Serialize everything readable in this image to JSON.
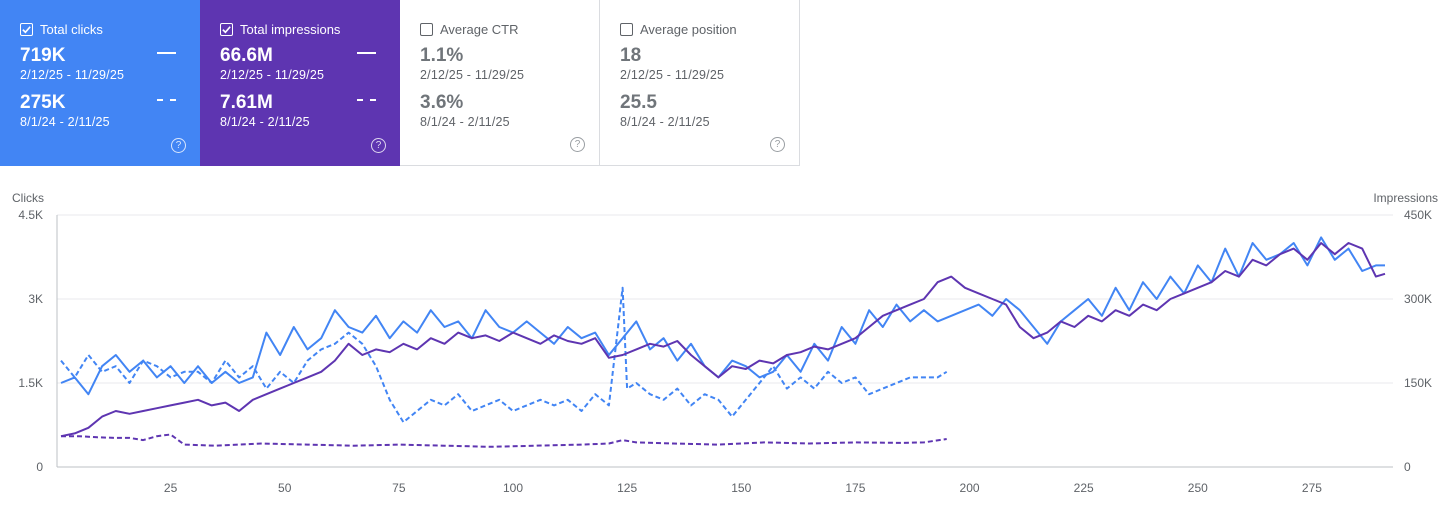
{
  "cards": [
    {
      "label": "Total clicks",
      "checked": true,
      "value1": "719K",
      "range1": "2/12/25 - 11/29/25",
      "value2": "275K",
      "range2": "8/1/24 - 2/11/25"
    },
    {
      "label": "Total impressions",
      "checked": true,
      "value1": "66.6M",
      "range1": "2/12/25 - 11/29/25",
      "value2": "7.61M",
      "range2": "8/1/24 - 2/11/25"
    },
    {
      "label": "Average CTR",
      "checked": false,
      "value1": "1.1%",
      "range1": "2/12/25 - 11/29/25",
      "value2": "3.6%",
      "range2": "8/1/24 - 2/11/25"
    },
    {
      "label": "Average position",
      "checked": false,
      "value1": "18",
      "range1": "2/12/25 - 11/29/25",
      "value2": "25.5",
      "range2": "8/1/24 - 2/11/25"
    }
  ],
  "colors": {
    "clicks": "#4285f4",
    "impressions": "#5e35b1"
  },
  "chart_data": {
    "type": "line",
    "left_axis": {
      "label": "Clicks",
      "ticks": [
        "4.5K",
        "3K",
        "1.5K",
        "0"
      ],
      "range": [
        0,
        4500
      ]
    },
    "right_axis": {
      "label": "Impressions",
      "ticks": [
        "450K",
        "300K",
        "150K",
        "0"
      ],
      "range": [
        0,
        450000
      ]
    },
    "x_ticks": [
      "25",
      "50",
      "75",
      "100",
      "125",
      "150",
      "175",
      "200",
      "225",
      "250",
      "275"
    ],
    "x_range": [
      1,
      291
    ],
    "series": [
      {
        "name": "Clicks (2/12/25 - 11/29/25)",
        "axis": "left",
        "style": "solid",
        "color": "#4285f4",
        "points": [
          [
            1,
            1500
          ],
          [
            4,
            1600
          ],
          [
            7,
            1300
          ],
          [
            10,
            1800
          ],
          [
            13,
            2000
          ],
          [
            16,
            1700
          ],
          [
            19,
            1900
          ],
          [
            22,
            1600
          ],
          [
            25,
            1800
          ],
          [
            28,
            1500
          ],
          [
            31,
            1800
          ],
          [
            34,
            1500
          ],
          [
            37,
            1700
          ],
          [
            40,
            1500
          ],
          [
            43,
            1600
          ],
          [
            46,
            2400
          ],
          [
            49,
            2000
          ],
          [
            52,
            2500
          ],
          [
            55,
            2100
          ],
          [
            58,
            2300
          ],
          [
            61,
            2800
          ],
          [
            64,
            2500
          ],
          [
            67,
            2400
          ],
          [
            70,
            2700
          ],
          [
            73,
            2300
          ],
          [
            76,
            2600
          ],
          [
            79,
            2400
          ],
          [
            82,
            2800
          ],
          [
            85,
            2500
          ],
          [
            88,
            2600
          ],
          [
            91,
            2300
          ],
          [
            94,
            2800
          ],
          [
            97,
            2500
          ],
          [
            100,
            2400
          ],
          [
            103,
            2600
          ],
          [
            106,
            2400
          ],
          [
            109,
            2200
          ],
          [
            112,
            2500
          ],
          [
            115,
            2300
          ],
          [
            118,
            2400
          ],
          [
            121,
            2000
          ],
          [
            124,
            2300
          ],
          [
            127,
            2600
          ],
          [
            130,
            2100
          ],
          [
            133,
            2300
          ],
          [
            136,
            1900
          ],
          [
            139,
            2200
          ],
          [
            142,
            1800
          ],
          [
            145,
            1600
          ],
          [
            148,
            1900
          ],
          [
            151,
            1800
          ],
          [
            154,
            1600
          ],
          [
            157,
            1700
          ],
          [
            160,
            2000
          ],
          [
            163,
            1700
          ],
          [
            166,
            2200
          ],
          [
            169,
            1900
          ],
          [
            172,
            2500
          ],
          [
            175,
            2200
          ],
          [
            178,
            2800
          ],
          [
            181,
            2500
          ],
          [
            184,
            2900
          ],
          [
            187,
            2600
          ],
          [
            190,
            2800
          ],
          [
            193,
            2600
          ],
          [
            196,
            2700
          ],
          [
            199,
            2800
          ],
          [
            202,
            2900
          ],
          [
            205,
            2700
          ],
          [
            208,
            3000
          ],
          [
            211,
            2800
          ],
          [
            214,
            2500
          ],
          [
            217,
            2200
          ],
          [
            220,
            2600
          ],
          [
            223,
            2800
          ],
          [
            226,
            3000
          ],
          [
            229,
            2700
          ],
          [
            232,
            3200
          ],
          [
            235,
            2800
          ],
          [
            238,
            3300
          ],
          [
            241,
            3000
          ],
          [
            244,
            3400
          ],
          [
            247,
            3100
          ],
          [
            250,
            3600
          ],
          [
            253,
            3300
          ],
          [
            256,
            3900
          ],
          [
            259,
            3400
          ],
          [
            262,
            4000
          ],
          [
            265,
            3700
          ],
          [
            268,
            3800
          ],
          [
            271,
            4000
          ],
          [
            274,
            3600
          ],
          [
            277,
            4100
          ],
          [
            280,
            3700
          ],
          [
            283,
            3900
          ],
          [
            286,
            3500
          ],
          [
            289,
            3600
          ],
          [
            291,
            3600
          ]
        ]
      },
      {
        "name": "Impressions (2/12/25 - 11/29/25)",
        "axis": "right",
        "style": "solid",
        "color": "#5e35b1",
        "points": [
          [
            1,
            55000
          ],
          [
            4,
            60000
          ],
          [
            7,
            70000
          ],
          [
            10,
            90000
          ],
          [
            13,
            100000
          ],
          [
            16,
            95000
          ],
          [
            19,
            100000
          ],
          [
            22,
            105000
          ],
          [
            25,
            110000
          ],
          [
            28,
            115000
          ],
          [
            31,
            120000
          ],
          [
            34,
            110000
          ],
          [
            37,
            115000
          ],
          [
            40,
            100000
          ],
          [
            43,
            120000
          ],
          [
            46,
            130000
          ],
          [
            49,
            140000
          ],
          [
            52,
            150000
          ],
          [
            55,
            160000
          ],
          [
            58,
            170000
          ],
          [
            61,
            190000
          ],
          [
            64,
            220000
          ],
          [
            67,
            200000
          ],
          [
            70,
            210000
          ],
          [
            73,
            205000
          ],
          [
            76,
            220000
          ],
          [
            79,
            210000
          ],
          [
            82,
            230000
          ],
          [
            85,
            220000
          ],
          [
            88,
            240000
          ],
          [
            91,
            230000
          ],
          [
            94,
            235000
          ],
          [
            97,
            225000
          ],
          [
            100,
            240000
          ],
          [
            103,
            230000
          ],
          [
            106,
            220000
          ],
          [
            109,
            235000
          ],
          [
            112,
            225000
          ],
          [
            115,
            220000
          ],
          [
            118,
            230000
          ],
          [
            121,
            195000
          ],
          [
            124,
            200000
          ],
          [
            127,
            210000
          ],
          [
            130,
            220000
          ],
          [
            133,
            215000
          ],
          [
            136,
            225000
          ],
          [
            139,
            200000
          ],
          [
            142,
            180000
          ],
          [
            145,
            160000
          ],
          [
            148,
            180000
          ],
          [
            151,
            175000
          ],
          [
            154,
            190000
          ],
          [
            157,
            185000
          ],
          [
            160,
            200000
          ],
          [
            163,
            205000
          ],
          [
            166,
            215000
          ],
          [
            169,
            210000
          ],
          [
            172,
            220000
          ],
          [
            175,
            230000
          ],
          [
            178,
            250000
          ],
          [
            181,
            270000
          ],
          [
            184,
            280000
          ],
          [
            187,
            290000
          ],
          [
            190,
            300000
          ],
          [
            193,
            330000
          ],
          [
            196,
            340000
          ],
          [
            199,
            320000
          ],
          [
            202,
            310000
          ],
          [
            205,
            300000
          ],
          [
            208,
            290000
          ],
          [
            211,
            250000
          ],
          [
            214,
            230000
          ],
          [
            217,
            240000
          ],
          [
            220,
            260000
          ],
          [
            223,
            250000
          ],
          [
            226,
            270000
          ],
          [
            229,
            260000
          ],
          [
            232,
            280000
          ],
          [
            235,
            270000
          ],
          [
            238,
            290000
          ],
          [
            241,
            280000
          ],
          [
            244,
            300000
          ],
          [
            247,
            310000
          ],
          [
            250,
            320000
          ],
          [
            253,
            330000
          ],
          [
            256,
            350000
          ],
          [
            259,
            340000
          ],
          [
            262,
            370000
          ],
          [
            265,
            360000
          ],
          [
            268,
            380000
          ],
          [
            271,
            390000
          ],
          [
            274,
            370000
          ],
          [
            277,
            400000
          ],
          [
            280,
            380000
          ],
          [
            283,
            400000
          ],
          [
            286,
            390000
          ],
          [
            289,
            340000
          ],
          [
            291,
            345000
          ]
        ]
      },
      {
        "name": "Clicks (8/1/24 - 2/11/25)",
        "axis": "left",
        "style": "dashed",
        "color": "#4285f4",
        "points": [
          [
            1,
            1900
          ],
          [
            4,
            1600
          ],
          [
            7,
            2000
          ],
          [
            10,
            1700
          ],
          [
            13,
            1800
          ],
          [
            16,
            1500
          ],
          [
            19,
            1900
          ],
          [
            22,
            1800
          ],
          [
            25,
            1600
          ],
          [
            28,
            1700
          ],
          [
            31,
            1700
          ],
          [
            34,
            1500
          ],
          [
            37,
            1900
          ],
          [
            40,
            1600
          ],
          [
            43,
            1800
          ],
          [
            46,
            1400
          ],
          [
            49,
            1700
          ],
          [
            52,
            1500
          ],
          [
            55,
            1900
          ],
          [
            58,
            2100
          ],
          [
            61,
            2200
          ],
          [
            64,
            2400
          ],
          [
            67,
            2200
          ],
          [
            70,
            1800
          ],
          [
            73,
            1200
          ],
          [
            76,
            800
          ],
          [
            79,
            1000
          ],
          [
            82,
            1200
          ],
          [
            85,
            1100
          ],
          [
            88,
            1300
          ],
          [
            91,
            1000
          ],
          [
            94,
            1100
          ],
          [
            97,
            1200
          ],
          [
            100,
            1000
          ],
          [
            103,
            1100
          ],
          [
            106,
            1200
          ],
          [
            109,
            1100
          ],
          [
            112,
            1200
          ],
          [
            115,
            1000
          ],
          [
            118,
            1300
          ],
          [
            121,
            1100
          ],
          [
            124,
            3200
          ],
          [
            125,
            1400
          ],
          [
            127,
            1500
          ],
          [
            130,
            1300
          ],
          [
            133,
            1200
          ],
          [
            136,
            1400
          ],
          [
            139,
            1100
          ],
          [
            142,
            1300
          ],
          [
            145,
            1200
          ],
          [
            148,
            900
          ],
          [
            151,
            1200
          ],
          [
            154,
            1500
          ],
          [
            157,
            1800
          ],
          [
            160,
            1400
          ],
          [
            163,
            1600
          ],
          [
            166,
            1400
          ],
          [
            169,
            1700
          ],
          [
            172,
            1500
          ],
          [
            175,
            1600
          ],
          [
            178,
            1300
          ],
          [
            181,
            1400
          ],
          [
            184,
            1500
          ],
          [
            187,
            1600
          ],
          [
            190,
            1600
          ],
          [
            193,
            1600
          ],
          [
            195,
            1700
          ]
        ]
      },
      {
        "name": "Impressions (8/1/24 - 2/11/25)",
        "axis": "right",
        "style": "dashed",
        "color": "#5e35b1",
        "points": [
          [
            1,
            55000
          ],
          [
            5,
            55000
          ],
          [
            9,
            53000
          ],
          [
            13,
            52000
          ],
          [
            16,
            52000
          ],
          [
            19,
            48000
          ],
          [
            22,
            55000
          ],
          [
            25,
            58000
          ],
          [
            28,
            40000
          ],
          [
            35,
            38000
          ],
          [
            45,
            42000
          ],
          [
            55,
            40000
          ],
          [
            65,
            38000
          ],
          [
            75,
            40000
          ],
          [
            85,
            38000
          ],
          [
            95,
            36000
          ],
          [
            105,
            38000
          ],
          [
            115,
            40000
          ],
          [
            121,
            42000
          ],
          [
            124,
            48000
          ],
          [
            127,
            44000
          ],
          [
            135,
            42000
          ],
          [
            145,
            40000
          ],
          [
            155,
            44000
          ],
          [
            165,
            42000
          ],
          [
            175,
            44000
          ],
          [
            185,
            43000
          ],
          [
            190,
            44000
          ],
          [
            195,
            50000
          ]
        ]
      }
    ]
  }
}
